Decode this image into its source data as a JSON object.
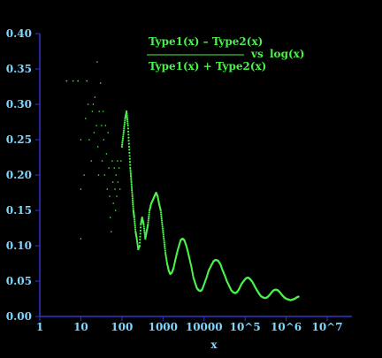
{
  "chart_data": {
    "type": "scatter",
    "annotation": {
      "numerator": "Type1(x) – Type2(x)",
      "denominator": "Type1(x) + Type2(x)",
      "vs": "vs",
      "rhs": "log(x)"
    },
    "xlabel": "x",
    "x_scale": "log",
    "xlim": [
      1,
      40000000
    ],
    "ylim": [
      0,
      0.4
    ],
    "x_tick_labels": [
      "1",
      "10",
      "100",
      "1000",
      "10000",
      "10^5",
      "10^6",
      "10^7"
    ],
    "y_tick_labels": [
      "0.00",
      "0.05",
      "0.10",
      "0.15",
      "0.20",
      "0.25",
      "0.30",
      "0.35",
      "0.40"
    ],
    "y_tick_values": [
      0,
      0.05,
      0.1,
      0.15,
      0.2,
      0.25,
      0.3,
      0.35,
      0.4
    ],
    "sparse_points": [
      [
        4.5,
        0.333
      ],
      [
        6.5,
        0.333
      ],
      [
        8.5,
        0.333
      ],
      [
        10,
        0.25
      ],
      [
        10,
        0.18
      ],
      [
        10,
        0.11
      ],
      [
        12,
        0.2
      ],
      [
        13,
        0.28
      ],
      [
        14,
        0.333
      ],
      [
        15,
        0.3
      ],
      [
        16,
        0.25
      ],
      [
        18,
        0.22
      ],
      [
        19,
        0.29
      ],
      [
        20,
        0.3
      ],
      [
        21,
        0.26
      ],
      [
        22,
        0.31
      ],
      [
        24,
        0.27
      ],
      [
        25,
        0.36
      ],
      [
        26,
        0.24
      ],
      [
        27,
        0.2
      ],
      [
        28,
        0.29
      ],
      [
        30,
        0.33
      ],
      [
        32,
        0.27
      ],
      [
        33,
        0.22
      ],
      [
        35,
        0.29
      ],
      [
        36,
        0.25
      ],
      [
        38,
        0.2
      ],
      [
        40,
        0.27
      ],
      [
        42,
        0.23
      ],
      [
        44,
        0.18
      ],
      [
        46,
        0.26
      ],
      [
        48,
        0.21
      ],
      [
        50,
        0.17
      ],
      [
        52,
        0.14
      ],
      [
        55,
        0.12
      ],
      [
        58,
        0.22
      ],
      [
        60,
        0.19
      ],
      [
        62,
        0.16
      ],
      [
        65,
        0.21
      ],
      [
        68,
        0.18
      ],
      [
        70,
        0.15
      ],
      [
        72,
        0.2
      ],
      [
        75,
        0.17
      ],
      [
        78,
        0.22
      ],
      [
        80,
        0.19
      ],
      [
        85,
        0.21
      ],
      [
        90,
        0.18
      ],
      [
        95,
        0.22
      ]
    ],
    "curve_points": [
      [
        100,
        0.24
      ],
      [
        110,
        0.26
      ],
      [
        120,
        0.28
      ],
      [
        130,
        0.29
      ],
      [
        140,
        0.27
      ],
      [
        150,
        0.24
      ],
      [
        160,
        0.21
      ],
      [
        170,
        0.19
      ],
      [
        180,
        0.17
      ],
      [
        190,
        0.15
      ],
      [
        200,
        0.14
      ],
      [
        215,
        0.12
      ],
      [
        230,
        0.11
      ],
      [
        250,
        0.095
      ],
      [
        270,
        0.1
      ],
      [
        290,
        0.13
      ],
      [
        310,
        0.14
      ],
      [
        340,
        0.13
      ],
      [
        370,
        0.11
      ],
      [
        400,
        0.12
      ],
      [
        430,
        0.13
      ],
      [
        470,
        0.15
      ],
      [
        520,
        0.16
      ],
      [
        570,
        0.165
      ],
      [
        620,
        0.17
      ],
      [
        680,
        0.175
      ],
      [
        740,
        0.17
      ],
      [
        800,
        0.16
      ],
      [
        880,
        0.15
      ],
      [
        960,
        0.13
      ],
      [
        1050,
        0.11
      ],
      [
        1150,
        0.09
      ],
      [
        1260,
        0.075
      ],
      [
        1380,
        0.065
      ],
      [
        1500,
        0.06
      ],
      [
        1650,
        0.062
      ],
      [
        1800,
        0.068
      ],
      [
        2000,
        0.08
      ],
      [
        2200,
        0.09
      ],
      [
        2450,
        0.1
      ],
      [
        2700,
        0.108
      ],
      [
        3000,
        0.11
      ],
      [
        3300,
        0.108
      ],
      [
        3700,
        0.1
      ],
      [
        4100,
        0.09
      ],
      [
        4500,
        0.08
      ],
      [
        5000,
        0.068
      ],
      [
        5500,
        0.055
      ],
      [
        6100,
        0.047
      ],
      [
        6700,
        0.04
      ],
      [
        7400,
        0.037
      ],
      [
        8200,
        0.036
      ],
      [
        9000,
        0.038
      ],
      [
        10000,
        0.045
      ],
      [
        11500,
        0.055
      ],
      [
        13000,
        0.065
      ],
      [
        15000,
        0.072
      ],
      [
        17000,
        0.078
      ],
      [
        19000,
        0.08
      ],
      [
        22000,
        0.079
      ],
      [
        25000,
        0.074
      ],
      [
        28000,
        0.066
      ],
      [
        32000,
        0.058
      ],
      [
        36000,
        0.05
      ],
      [
        41000,
        0.043
      ],
      [
        46000,
        0.037
      ],
      [
        52000,
        0.034
      ],
      [
        58000,
        0.033
      ],
      [
        65000,
        0.035
      ],
      [
        73000,
        0.04
      ],
      [
        82000,
        0.046
      ],
      [
        92000,
        0.05
      ],
      [
        105000,
        0.054
      ],
      [
        118000,
        0.055
      ],
      [
        132000,
        0.053
      ],
      [
        150000,
        0.049
      ],
      [
        170000,
        0.043
      ],
      [
        190000,
        0.038
      ],
      [
        215000,
        0.033
      ],
      [
        240000,
        0.029
      ],
      [
        270000,
        0.027
      ],
      [
        305000,
        0.026
      ],
      [
        345000,
        0.027
      ],
      [
        390000,
        0.03
      ],
      [
        440000,
        0.034
      ],
      [
        495000,
        0.037
      ],
      [
        560000,
        0.038
      ],
      [
        630000,
        0.037
      ],
      [
        710000,
        0.034
      ],
      [
        800000,
        0.03
      ],
      [
        900000,
        0.027
      ],
      [
        1010000,
        0.025
      ],
      [
        1140000,
        0.024
      ],
      [
        1280000,
        0.023
      ],
      [
        1440000,
        0.024
      ],
      [
        1620000,
        0.025
      ],
      [
        1820000,
        0.027
      ],
      [
        2000000,
        0.028
      ]
    ],
    "colors": {
      "background": "#000000",
      "axis": "#3434cc",
      "tick_text": "#7fd7ff",
      "points": "#4cf04c"
    }
  }
}
